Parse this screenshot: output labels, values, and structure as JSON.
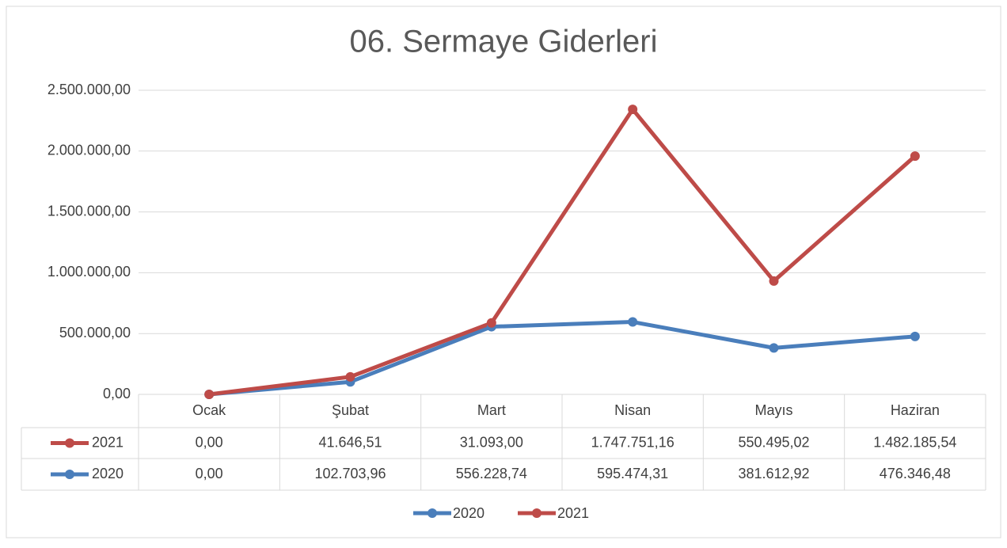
{
  "chart_data": {
    "type": "line",
    "stacked": true,
    "title": "06. Sermaye Giderleri",
    "categories": [
      "Ocak",
      "Şubat",
      "Mart",
      "Nisan",
      "Mayıs",
      "Haziran"
    ],
    "series": [
      {
        "name": "2020",
        "color": "#4a7ebb",
        "values": [
          0,
          102703.96,
          556228.74,
          595474.31,
          381612.92,
          476346.48
        ],
        "value_labels": [
          "0,00",
          "102.703,96",
          "556.228,74",
          "595.474,31",
          "381.612,92",
          "476.346,48"
        ]
      },
      {
        "name": "2021",
        "color": "#be4b48",
        "values": [
          0,
          41646.51,
          31093,
          1747751.16,
          550495.02,
          1482185.54
        ],
        "value_labels": [
          "0,00",
          "41.646,51",
          "31.093,00",
          "1.747.751,16",
          "550.495,02",
          "1.482.185,54"
        ]
      }
    ],
    "ylim": [
      0,
      2500000
    ],
    "yticks": [
      {
        "value": 0,
        "label": "0,00"
      },
      {
        "value": 500000,
        "label": "500.000,00"
      },
      {
        "value": 1000000,
        "label": "1.000.000,00"
      },
      {
        "value": 1500000,
        "label": "1.500.000,00"
      },
      {
        "value": 2000000,
        "label": "2.000.000,00"
      },
      {
        "value": 2500000,
        "label": "2.500.000,00"
      }
    ],
    "grid": true,
    "legend": "bottom",
    "data_table": true
  }
}
